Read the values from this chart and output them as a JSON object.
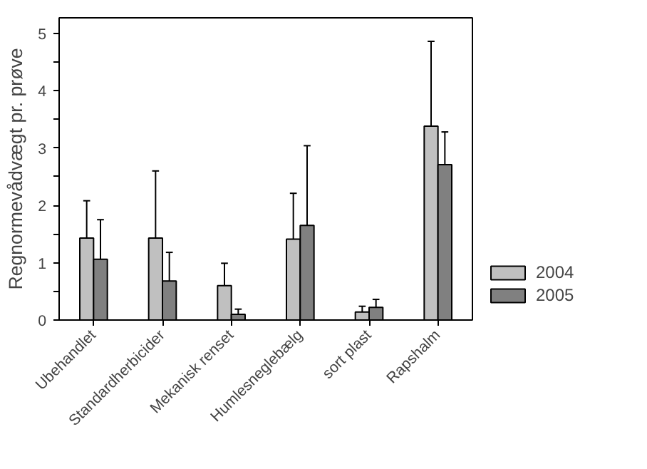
{
  "chart_data": {
    "type": "bar",
    "ylabel": "Regnormevådvægt pr. prøve",
    "categories": [
      "Ubehandlet",
      "Standardherbicider",
      "Mekanisk renset",
      "Humlesneglebælg",
      "sort plast",
      "Rapshalm"
    ],
    "series": [
      {
        "name": "2004",
        "color": "#c0c0c0",
        "values": [
          1.43,
          1.43,
          0.6,
          1.41,
          0.14,
          3.38
        ],
        "errors": [
          [
            1.43,
            2.08
          ],
          [
            1.43,
            2.6
          ],
          [
            0.6,
            0.99
          ],
          [
            1.41,
            2.21
          ],
          [
            0.14,
            0.24
          ],
          [
            3.38,
            4.86
          ]
        ]
      },
      {
        "name": "2005",
        "color": "#808080",
        "values": [
          1.06,
          0.68,
          0.1,
          1.65,
          0.22,
          2.71
        ],
        "errors": [
          [
            1.06,
            1.75
          ],
          [
            0.68,
            1.18
          ],
          [
            0.1,
            0.19
          ],
          [
            1.65,
            3.04
          ],
          [
            0.22,
            0.36
          ],
          [
            2.71,
            3.28
          ]
        ]
      }
    ],
    "ylim": [
      0,
      5.27
    ],
    "yticks": [
      0,
      {
        "value": 0.5,
        "label": null
      },
      1,
      {
        "value": 1.5,
        "label": null
      },
      2,
      {
        "value": 2.5,
        "label": null
      },
      3,
      {
        "value": 3.5,
        "label": null
      },
      4,
      {
        "value": 4.5,
        "label": null
      },
      5
    ],
    "legend": "right"
  }
}
